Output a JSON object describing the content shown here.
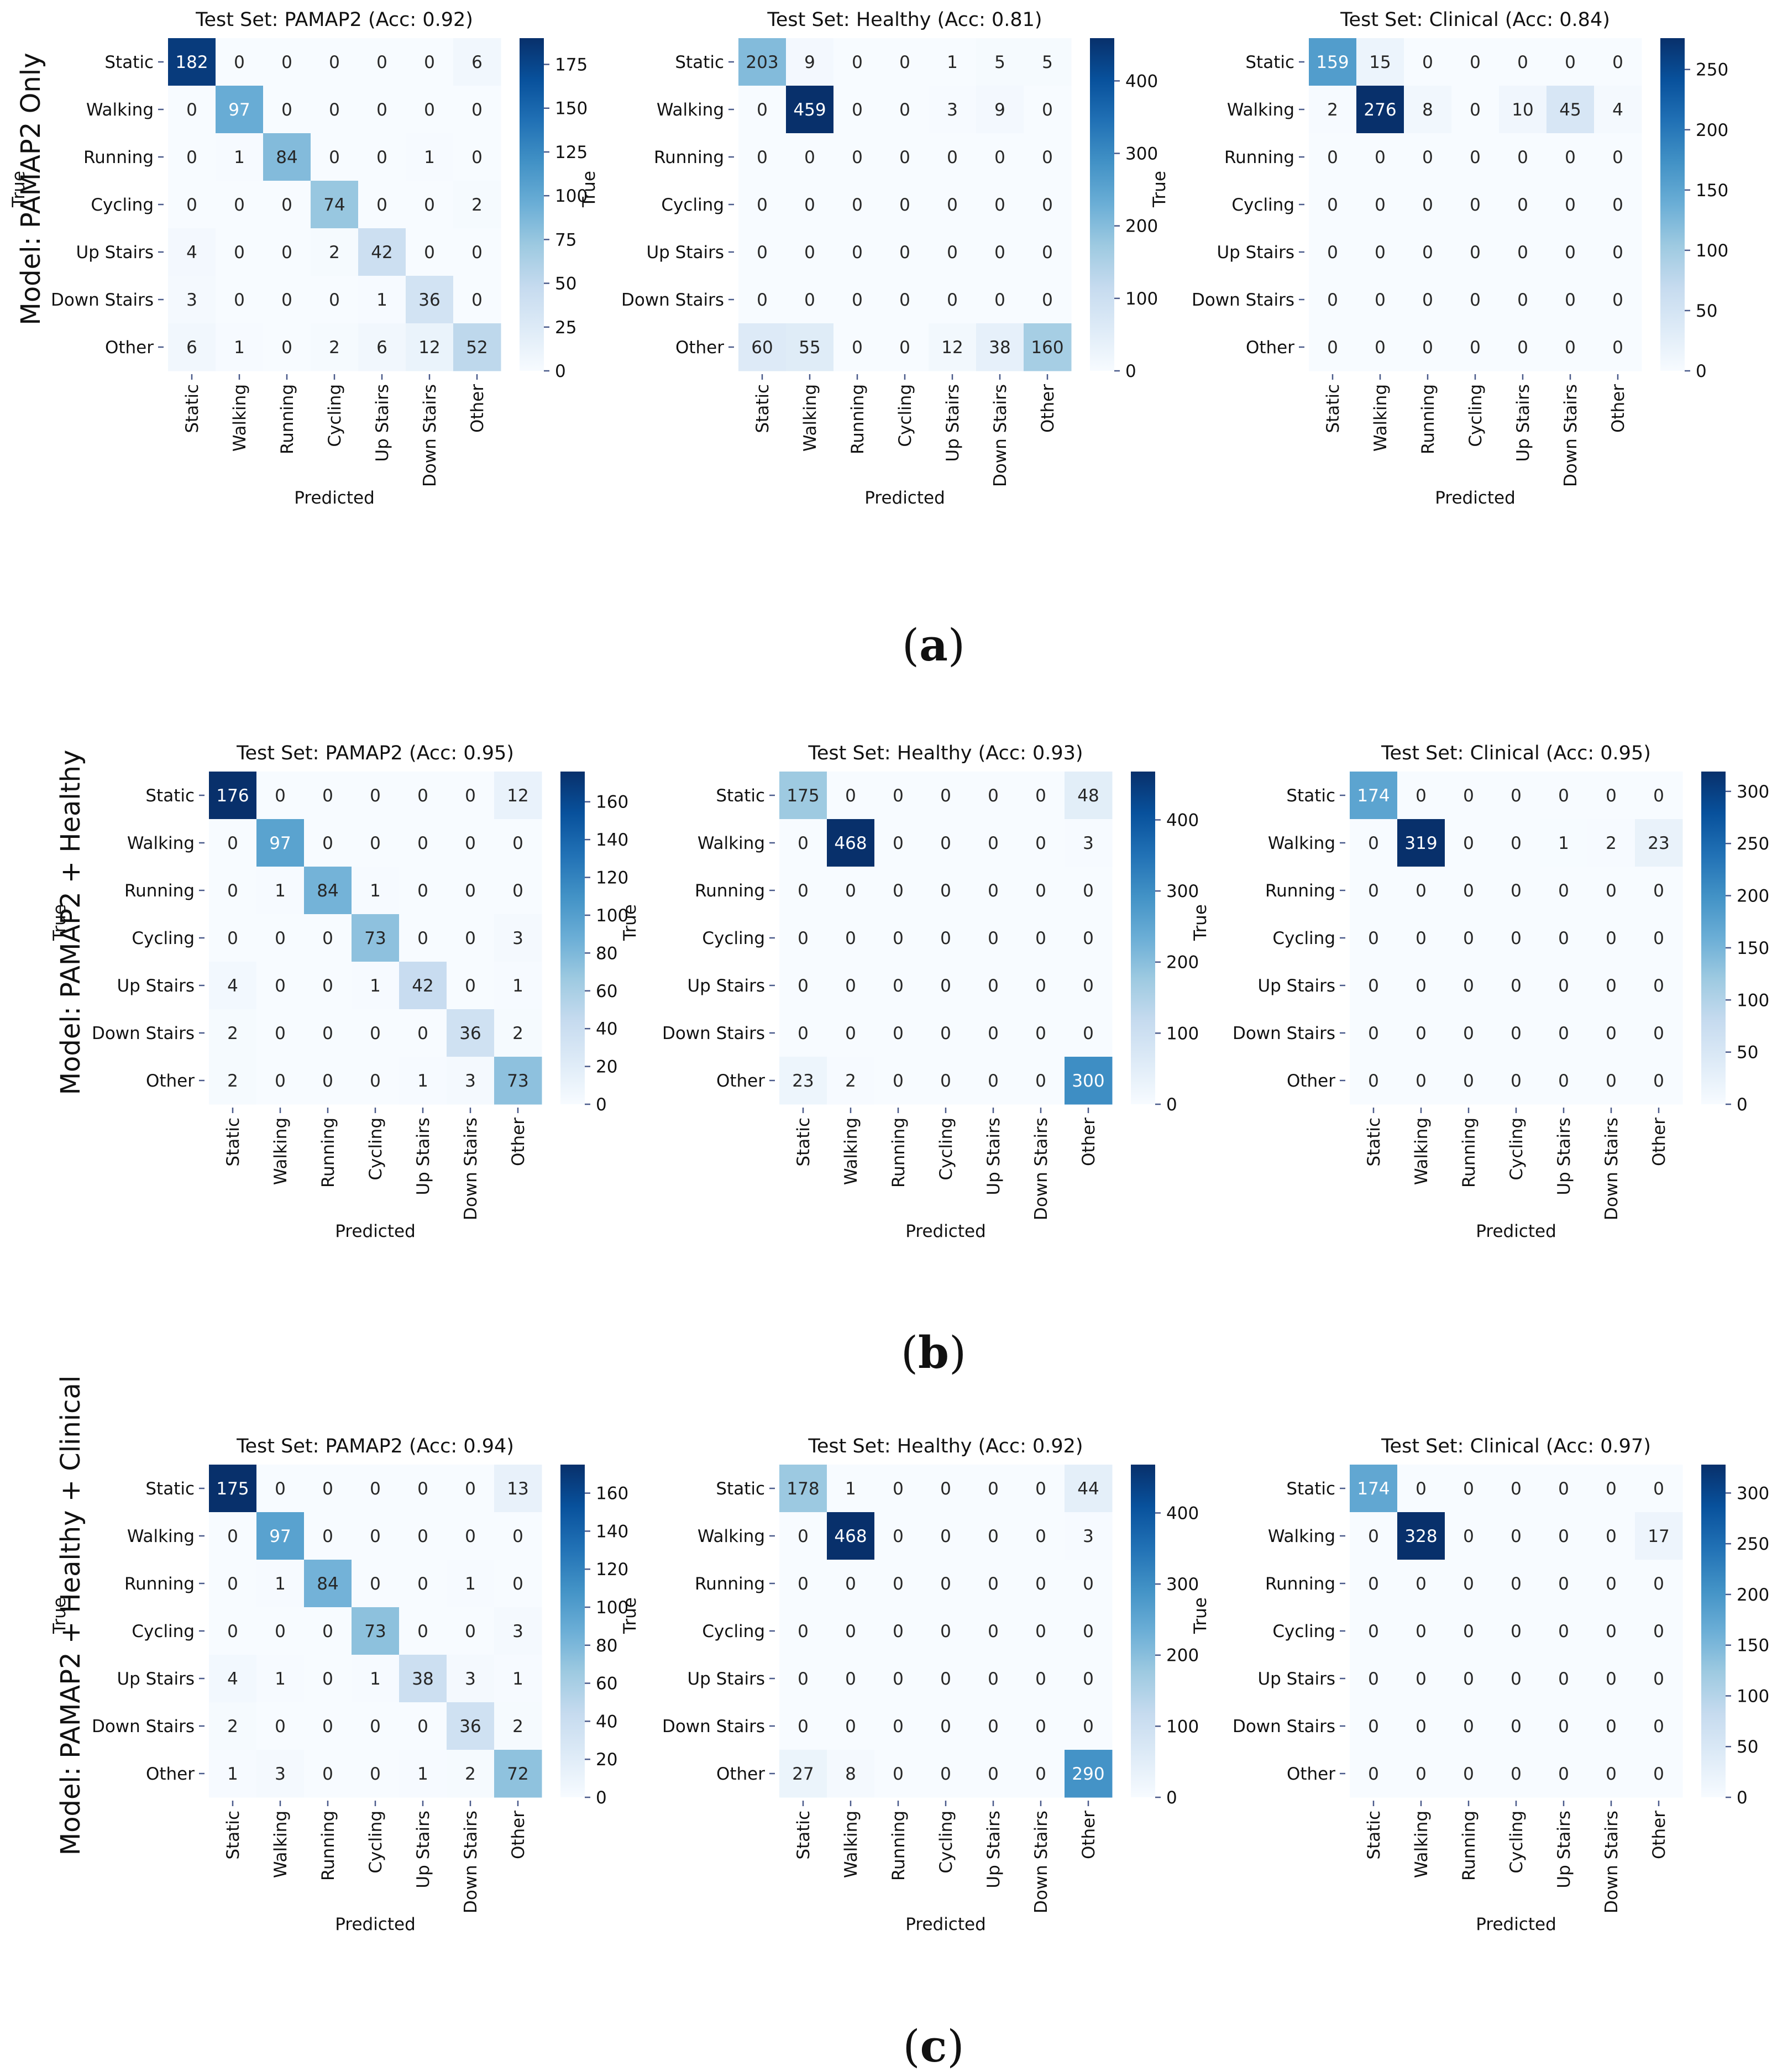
{
  "figure": {
    "labels": [
      "True",
      "Predicted"
    ],
    "classes": [
      "Static",
      "Walking",
      "Running",
      "Cycling",
      "Up Stairs",
      "Down Stairs",
      "Other"
    ],
    "colormap": [
      "#f7fbff",
      "#deebf7",
      "#c6dbef",
      "#9ecae1",
      "#6baed6",
      "#4292c6",
      "#2171b5",
      "#08519c",
      "#08306b"
    ],
    "tick_color": "#4a5a8a"
  },
  "panels": [
    {
      "letter": "a",
      "open": "(",
      "close": ")",
      "model_label": "Model: PAMAP2 Only"
    },
    {
      "letter": "b",
      "open": "(",
      "close": ")",
      "model_label": "Model: PAMAP2 + Healthy"
    },
    {
      "letter": "c",
      "open": "(",
      "close": ")",
      "model_label": "Model: PAMAP2 + Healthy + Clinical"
    }
  ],
  "chart_data": [
    {
      "type": "heatmap",
      "row": 0,
      "title": "Test Set: PAMAP2 (Acc: 0.92)",
      "colorbar": {
        "vmin": 0,
        "vmax": 190,
        "ticks": [
          0,
          25,
          50,
          75,
          100,
          125,
          150,
          175
        ]
      },
      "values": [
        [
          182,
          0,
          0,
          0,
          0,
          0,
          6
        ],
        [
          0,
          97,
          0,
          0,
          0,
          0,
          0
        ],
        [
          0,
          1,
          84,
          0,
          0,
          1,
          0
        ],
        [
          0,
          0,
          0,
          74,
          0,
          0,
          2
        ],
        [
          4,
          0,
          0,
          2,
          42,
          0,
          0
        ],
        [
          3,
          0,
          0,
          0,
          1,
          36,
          0
        ],
        [
          6,
          1,
          0,
          2,
          6,
          12,
          52
        ]
      ]
    },
    {
      "type": "heatmap",
      "row": 0,
      "title": "Test Set: Healthy (Acc: 0.81)",
      "colorbar": {
        "vmin": 0,
        "vmax": 459,
        "ticks": [
          0,
          100,
          200,
          300,
          400
        ]
      },
      "values": [
        [
          203,
          9,
          0,
          0,
          1,
          5,
          5
        ],
        [
          0,
          459,
          0,
          0,
          3,
          9,
          0
        ],
        [
          0,
          0,
          0,
          0,
          0,
          0,
          0
        ],
        [
          0,
          0,
          0,
          0,
          0,
          0,
          0
        ],
        [
          0,
          0,
          0,
          0,
          0,
          0,
          0
        ],
        [
          0,
          0,
          0,
          0,
          0,
          0,
          0
        ],
        [
          60,
          55,
          0,
          0,
          12,
          38,
          160
        ]
      ]
    },
    {
      "type": "heatmap",
      "row": 0,
      "title": "Test Set: Clinical (Acc: 0.84)",
      "colorbar": {
        "vmin": 0,
        "vmax": 276,
        "ticks": [
          0,
          50,
          100,
          150,
          200,
          250
        ]
      },
      "values": [
        [
          159,
          15,
          0,
          0,
          0,
          0,
          0
        ],
        [
          2,
          276,
          8,
          0,
          10,
          45,
          4
        ],
        [
          0,
          0,
          0,
          0,
          0,
          0,
          0
        ],
        [
          0,
          0,
          0,
          0,
          0,
          0,
          0
        ],
        [
          0,
          0,
          0,
          0,
          0,
          0,
          0
        ],
        [
          0,
          0,
          0,
          0,
          0,
          0,
          0
        ],
        [
          0,
          0,
          0,
          0,
          0,
          0,
          0
        ]
      ]
    },
    {
      "type": "heatmap",
      "row": 1,
      "title": "Test Set: PAMAP2 (Acc: 0.95)",
      "colorbar": {
        "vmin": 0,
        "vmax": 176,
        "ticks": [
          0,
          20,
          40,
          60,
          80,
          100,
          120,
          140,
          160
        ]
      },
      "values": [
        [
          176,
          0,
          0,
          0,
          0,
          0,
          12
        ],
        [
          0,
          97,
          0,
          0,
          0,
          0,
          0
        ],
        [
          0,
          1,
          84,
          1,
          0,
          0,
          0
        ],
        [
          0,
          0,
          0,
          73,
          0,
          0,
          3
        ],
        [
          4,
          0,
          0,
          1,
          42,
          0,
          1
        ],
        [
          2,
          0,
          0,
          0,
          0,
          36,
          2
        ],
        [
          2,
          0,
          0,
          0,
          1,
          3,
          73
        ]
      ]
    },
    {
      "type": "heatmap",
      "row": 1,
      "title": "Test Set: Healthy (Acc: 0.93)",
      "colorbar": {
        "vmin": 0,
        "vmax": 468,
        "ticks": [
          0,
          100,
          200,
          300,
          400
        ]
      },
      "values": [
        [
          175,
          0,
          0,
          0,
          0,
          0,
          48
        ],
        [
          0,
          468,
          0,
          0,
          0,
          0,
          3
        ],
        [
          0,
          0,
          0,
          0,
          0,
          0,
          0
        ],
        [
          0,
          0,
          0,
          0,
          0,
          0,
          0
        ],
        [
          0,
          0,
          0,
          0,
          0,
          0,
          0
        ],
        [
          0,
          0,
          0,
          0,
          0,
          0,
          0
        ],
        [
          23,
          2,
          0,
          0,
          0,
          0,
          300
        ]
      ]
    },
    {
      "type": "heatmap",
      "row": 1,
      "title": "Test Set: Clinical (Acc: 0.95)",
      "colorbar": {
        "vmin": 0,
        "vmax": 319,
        "ticks": [
          0,
          50,
          100,
          150,
          200,
          250,
          300
        ]
      },
      "values": [
        [
          174,
          0,
          0,
          0,
          0,
          0,
          0
        ],
        [
          0,
          319,
          0,
          0,
          1,
          2,
          23
        ],
        [
          0,
          0,
          0,
          0,
          0,
          0,
          0
        ],
        [
          0,
          0,
          0,
          0,
          0,
          0,
          0
        ],
        [
          0,
          0,
          0,
          0,
          0,
          0,
          0
        ],
        [
          0,
          0,
          0,
          0,
          0,
          0,
          0
        ],
        [
          0,
          0,
          0,
          0,
          0,
          0,
          0
        ]
      ]
    },
    {
      "type": "heatmap",
      "row": 2,
      "title": "Test Set: PAMAP2 (Acc: 0.94)",
      "colorbar": {
        "vmin": 0,
        "vmax": 175,
        "ticks": [
          0,
          20,
          40,
          60,
          80,
          100,
          120,
          140,
          160
        ]
      },
      "values": [
        [
          175,
          0,
          0,
          0,
          0,
          0,
          13
        ],
        [
          0,
          97,
          0,
          0,
          0,
          0,
          0
        ],
        [
          0,
          1,
          84,
          0,
          0,
          1,
          0
        ],
        [
          0,
          0,
          0,
          73,
          0,
          0,
          3
        ],
        [
          4,
          1,
          0,
          1,
          38,
          3,
          1
        ],
        [
          2,
          0,
          0,
          0,
          0,
          36,
          2
        ],
        [
          1,
          3,
          0,
          0,
          1,
          2,
          72
        ]
      ]
    },
    {
      "type": "heatmap",
      "row": 2,
      "title": "Test Set: Healthy (Acc: 0.92)",
      "colorbar": {
        "vmin": 0,
        "vmax": 468,
        "ticks": [
          0,
          100,
          200,
          300,
          400
        ]
      },
      "values": [
        [
          178,
          1,
          0,
          0,
          0,
          0,
          44
        ],
        [
          0,
          468,
          0,
          0,
          0,
          0,
          3
        ],
        [
          0,
          0,
          0,
          0,
          0,
          0,
          0
        ],
        [
          0,
          0,
          0,
          0,
          0,
          0,
          0
        ],
        [
          0,
          0,
          0,
          0,
          0,
          0,
          0
        ],
        [
          0,
          0,
          0,
          0,
          0,
          0,
          0
        ],
        [
          27,
          8,
          0,
          0,
          0,
          0,
          290
        ]
      ]
    },
    {
      "type": "heatmap",
      "row": 2,
      "title": "Test Set: Clinical (Acc: 0.97)",
      "colorbar": {
        "vmin": 0,
        "vmax": 328,
        "ticks": [
          0,
          50,
          100,
          150,
          200,
          250,
          300
        ]
      },
      "values": [
        [
          174,
          0,
          0,
          0,
          0,
          0,
          0
        ],
        [
          0,
          328,
          0,
          0,
          0,
          0,
          17
        ],
        [
          0,
          0,
          0,
          0,
          0,
          0,
          0
        ],
        [
          0,
          0,
          0,
          0,
          0,
          0,
          0
        ],
        [
          0,
          0,
          0,
          0,
          0,
          0,
          0
        ],
        [
          0,
          0,
          0,
          0,
          0,
          0,
          0
        ],
        [
          0,
          0,
          0,
          0,
          0,
          0,
          0
        ]
      ]
    }
  ]
}
